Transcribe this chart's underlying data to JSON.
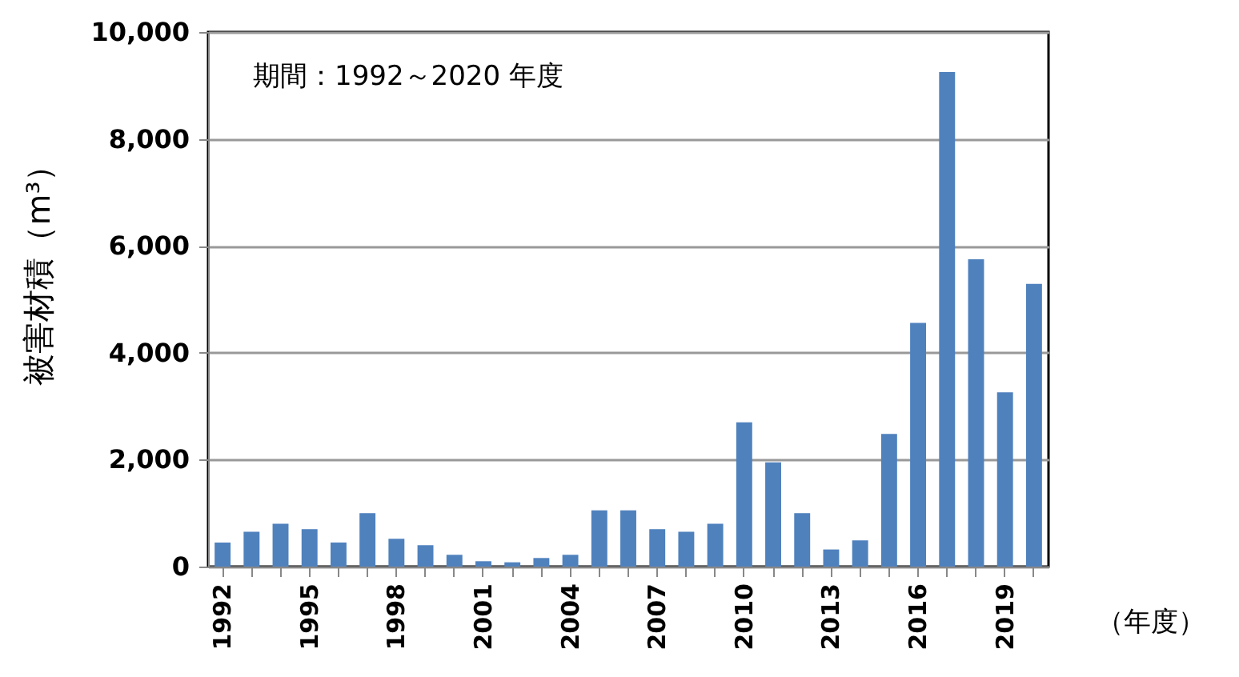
{
  "chart_data": {
    "type": "bar",
    "ylabel": "被害材積（m³）",
    "xlabel": "（年度）",
    "annotations": [
      "期間：1992～2020 年度"
    ],
    "categories": [
      "1992",
      null,
      null,
      "1995",
      null,
      null,
      "1998",
      null,
      null,
      "2001",
      null,
      null,
      "2004",
      null,
      null,
      "2007",
      null,
      null,
      "2010",
      null,
      null,
      "2013",
      null,
      null,
      "2016",
      null,
      null,
      "2019",
      null
    ],
    "values": [
      450,
      650,
      800,
      700,
      450,
      1000,
      520,
      400,
      220,
      100,
      80,
      160,
      220,
      1050,
      1050,
      700,
      650,
      800,
      2700,
      1950,
      1000,
      320,
      490,
      2480,
      4560,
      9250,
      5750,
      3260,
      5290
    ],
    "color": "#4f81bd",
    "ylim": [
      0,
      10000
    ],
    "yticks": [
      {
        "value": 0,
        "label": "0"
      },
      {
        "value": 2000,
        "label": "2,000"
      },
      {
        "value": 4000,
        "label": "4,000"
      },
      {
        "value": 6000,
        "label": "6,000"
      },
      {
        "value": 8000,
        "label": "8,000"
      },
      {
        "value": 10000,
        "label": "10,000"
      }
    ],
    "grid": "y"
  }
}
